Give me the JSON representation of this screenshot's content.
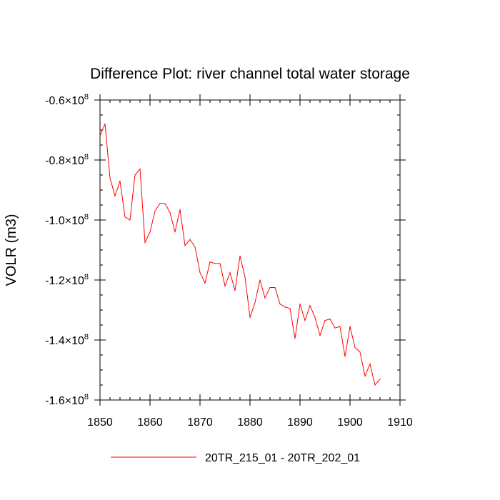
{
  "chart_data": {
    "type": "line",
    "title": "Difference Plot: river channel total water storage",
    "xlabel": "",
    "ylabel": "VOLR  (m3)",
    "xlim": [
      1850,
      1910
    ],
    "ylim": [
      -160000000.0,
      -60000000.0
    ],
    "x_ticks": [
      1850,
      1860,
      1870,
      1880,
      1890,
      1900,
      1910
    ],
    "y_ticks": [
      {
        "value": -160000000.0,
        "mantissa": "-1.6",
        "exponent": "8"
      },
      {
        "value": -140000000.0,
        "mantissa": "-1.4",
        "exponent": "8"
      },
      {
        "value": -120000000.0,
        "mantissa": "-1.2",
        "exponent": "8"
      },
      {
        "value": -100000000.0,
        "mantissa": "-1.0",
        "exponent": "8"
      },
      {
        "value": -80000000.0,
        "mantissa": "-0.8",
        "exponent": "8"
      },
      {
        "value": -60000000.0,
        "mantissa": "-0.6",
        "exponent": "8"
      }
    ],
    "times_sign": "×10",
    "series": [
      {
        "name": "20TR_215_01 - 20TR_202_01",
        "color": "#ff0000",
        "x": [
          1850,
          1851,
          1852,
          1853,
          1854,
          1855,
          1856,
          1857,
          1858,
          1859,
          1860,
          1861,
          1862,
          1863,
          1864,
          1865,
          1866,
          1867,
          1868,
          1869,
          1870,
          1871,
          1872,
          1873,
          1874,
          1875,
          1876,
          1877,
          1878,
          1879,
          1880,
          1881,
          1882,
          1883,
          1884,
          1885,
          1886,
          1887,
          1888,
          1889,
          1890,
          1891,
          1892,
          1893,
          1894,
          1895,
          1896,
          1897,
          1898,
          1899,
          1900,
          1901,
          1902,
          1903,
          1904,
          1905,
          1906
        ],
        "values": [
          -72000000.0,
          -68000000.0,
          -86000000.0,
          -92000000.0,
          -87000000.0,
          -99000000.0,
          -100000000.0,
          -85000000.0,
          -83000000.0,
          -107500000.0,
          -104000000.0,
          -97000000.0,
          -94500000.0,
          -94500000.0,
          -97500000.0,
          -104000000.0,
          -96500000.0,
          -108500000.0,
          -106500000.0,
          -109000000.0,
          -117500000.0,
          -121000000.0,
          -114000000.0,
          -114500000.0,
          -114500000.0,
          -122000000.0,
          -117500000.0,
          -123500000.0,
          -112000000.0,
          -119000000.0,
          -132500000.0,
          -127500000.0,
          -120000000.0,
          -126000000.0,
          -122500000.0,
          -122500000.0,
          -128000000.0,
          -129000000.0,
          -129500000.0,
          -139500000.0,
          -128000000.0,
          -133500000.0,
          -128500000.0,
          -132500000.0,
          -138500000.0,
          -133500000.0,
          -133000000.0,
          -136000000.0,
          -135500000.0,
          -145500000.0,
          -135500000.0,
          -142500000.0,
          -144000000.0,
          -152000000.0,
          -148000000.0,
          -155000000.0,
          -153000000.0
        ]
      }
    ],
    "grid": false,
    "legend_position": "bottom-center"
  }
}
